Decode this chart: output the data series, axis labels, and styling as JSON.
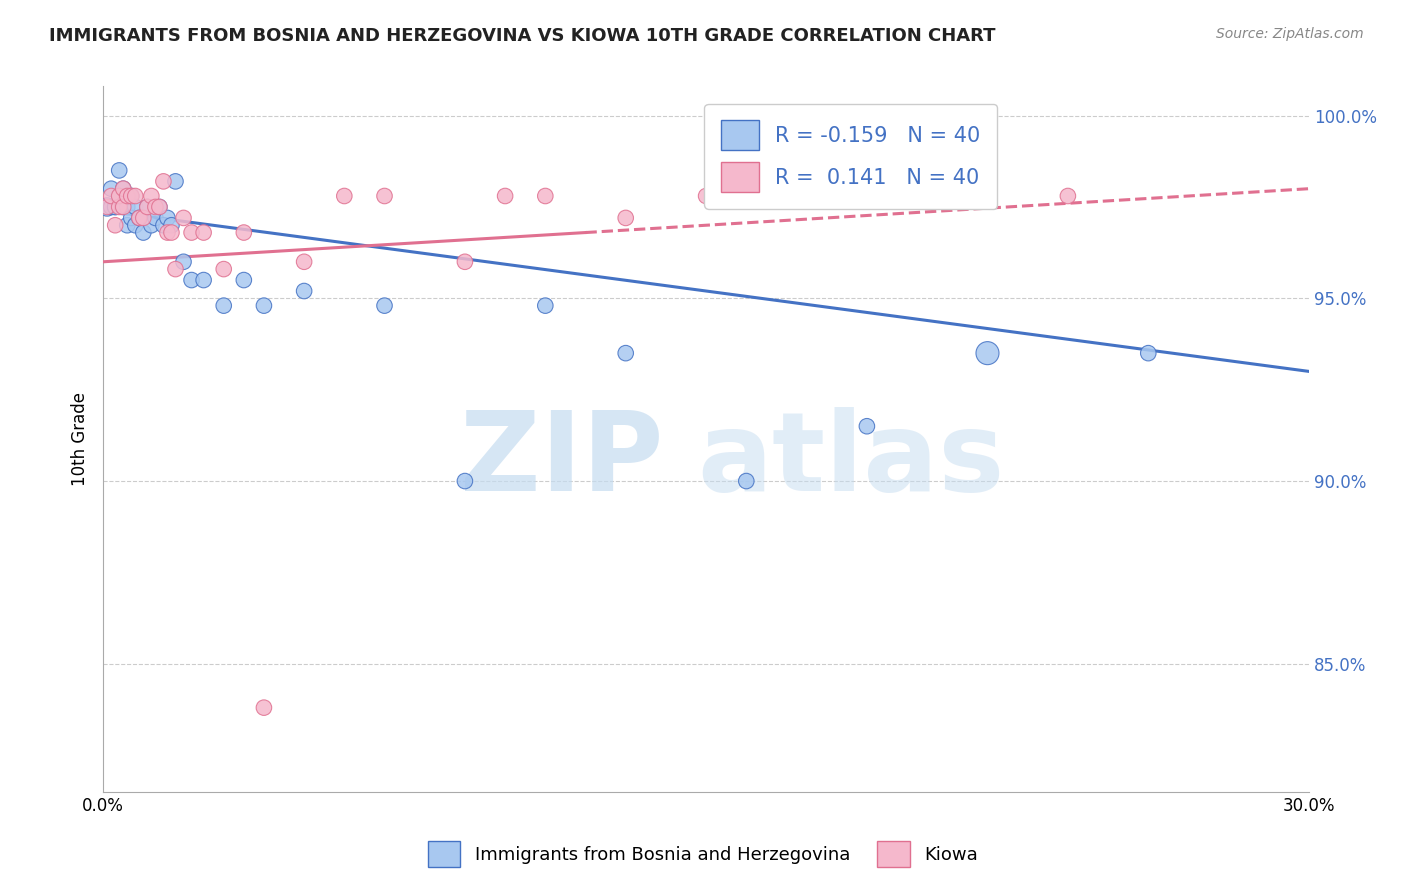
{
  "title": "IMMIGRANTS FROM BOSNIA AND HERZEGOVINA VS KIOWA 10TH GRADE CORRELATION CHART",
  "source_text": "Source: ZipAtlas.com",
  "ylabel": "10th Grade",
  "ytick_values": [
    0.85,
    0.9,
    0.95,
    1.0
  ],
  "xlim": [
    0.0,
    0.3
  ],
  "ylim": [
    0.815,
    1.008
  ],
  "legend_r_blue": "-0.159",
  "legend_n_blue": "40",
  "legend_r_pink": "0.141",
  "legend_n_pink": "40",
  "blue_color": "#A8C8F0",
  "pink_color": "#F5B8CC",
  "trend_blue_color": "#4472C4",
  "trend_pink_color": "#E07090",
  "blue_scatter_x": [
    0.001,
    0.002,
    0.002,
    0.003,
    0.003,
    0.004,
    0.004,
    0.005,
    0.005,
    0.006,
    0.006,
    0.007,
    0.007,
    0.008,
    0.008,
    0.009,
    0.01,
    0.011,
    0.012,
    0.013,
    0.014,
    0.015,
    0.016,
    0.017,
    0.018,
    0.02,
    0.022,
    0.025,
    0.03,
    0.035,
    0.04,
    0.05,
    0.07,
    0.09,
    0.11,
    0.13,
    0.16,
    0.19,
    0.22,
    0.26
  ],
  "blue_scatter_y": [
    0.975,
    0.98,
    0.975,
    0.975,
    0.975,
    0.985,
    0.978,
    0.98,
    0.975,
    0.975,
    0.97,
    0.978,
    0.972,
    0.975,
    0.97,
    0.972,
    0.968,
    0.975,
    0.97,
    0.972,
    0.975,
    0.97,
    0.972,
    0.97,
    0.982,
    0.96,
    0.955,
    0.955,
    0.948,
    0.955,
    0.948,
    0.952,
    0.948,
    0.9,
    0.948,
    0.935,
    0.9,
    0.915,
    0.935,
    0.935
  ],
  "blue_scatter_sizes": [
    35,
    25,
    25,
    25,
    25,
    25,
    25,
    25,
    25,
    25,
    25,
    25,
    25,
    25,
    25,
    25,
    25,
    25,
    25,
    25,
    25,
    25,
    25,
    25,
    25,
    25,
    25,
    25,
    25,
    25,
    25,
    25,
    25,
    25,
    25,
    25,
    25,
    25,
    55,
    25
  ],
  "pink_scatter_x": [
    0.001,
    0.002,
    0.003,
    0.004,
    0.004,
    0.005,
    0.005,
    0.006,
    0.007,
    0.008,
    0.009,
    0.01,
    0.011,
    0.012,
    0.013,
    0.014,
    0.015,
    0.016,
    0.017,
    0.018,
    0.02,
    0.022,
    0.025,
    0.03,
    0.035,
    0.04,
    0.05,
    0.06,
    0.07,
    0.09,
    0.1,
    0.11,
    0.13,
    0.15,
    0.16,
    0.17,
    0.19,
    0.2,
    0.22,
    0.24
  ],
  "pink_scatter_y": [
    0.975,
    0.978,
    0.97,
    0.975,
    0.978,
    0.98,
    0.975,
    0.978,
    0.978,
    0.978,
    0.972,
    0.972,
    0.975,
    0.978,
    0.975,
    0.975,
    0.982,
    0.968,
    0.968,
    0.958,
    0.972,
    0.968,
    0.968,
    0.958,
    0.968,
    0.838,
    0.96,
    0.978,
    0.978,
    0.96,
    0.978,
    0.978,
    0.972,
    0.978,
    0.978,
    0.978,
    0.978,
    0.978,
    0.978,
    0.978
  ],
  "pink_scatter_sizes": [
    25,
    25,
    25,
    25,
    25,
    25,
    25,
    25,
    25,
    25,
    25,
    25,
    25,
    25,
    25,
    25,
    25,
    25,
    25,
    25,
    25,
    25,
    25,
    25,
    25,
    25,
    25,
    25,
    25,
    25,
    25,
    25,
    25,
    25,
    25,
    25,
    25,
    25,
    25,
    25
  ],
  "blue_trend_x0": 0.0,
  "blue_trend_y0": 0.974,
  "blue_trend_x1": 0.3,
  "blue_trend_y1": 0.93,
  "pink_trend_solid_x0": 0.0,
  "pink_trend_solid_y0": 0.96,
  "pink_trend_solid_x1": 0.12,
  "pink_trend_solid_y1": 0.968,
  "pink_trend_dash_x0": 0.12,
  "pink_trend_dash_y0": 0.968,
  "pink_trend_dash_x1": 0.3,
  "pink_trend_dash_y1": 0.98
}
